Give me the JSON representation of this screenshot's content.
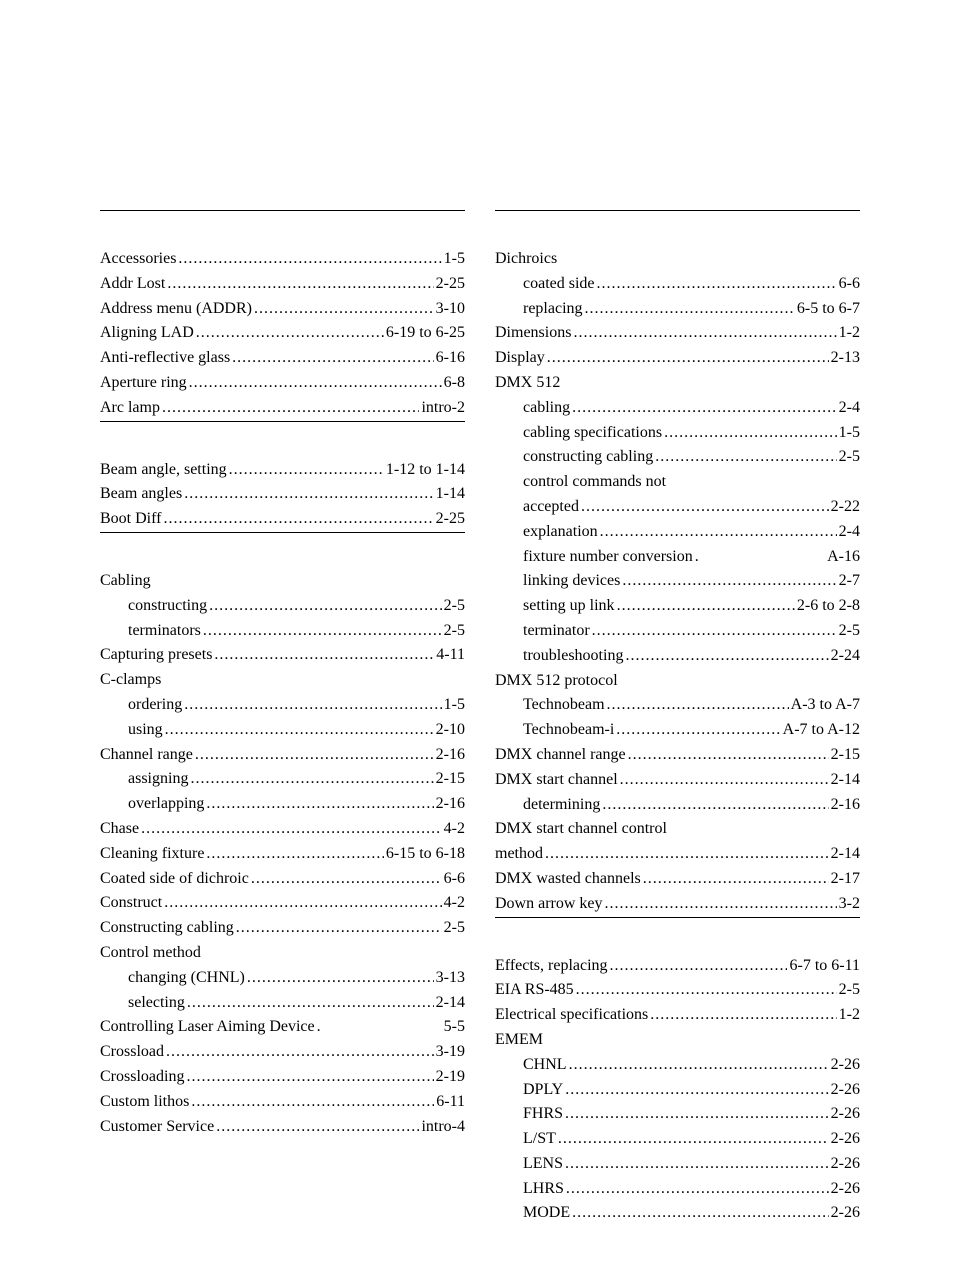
{
  "text_color": "#000000",
  "background_color": "#ffffff",
  "font_size_pt": 12,
  "line_height": 1.55,
  "left_column": [
    {
      "type": "hr"
    },
    {
      "type": "gap"
    },
    {
      "term": "Accessories",
      "page": "1-5"
    },
    {
      "term": "Addr Lost",
      "page": "2-25"
    },
    {
      "term": "Address menu (ADDR)",
      "page": "3-10"
    },
    {
      "term": "Aligning LAD",
      "page": "6-19 to 6-25"
    },
    {
      "term": "Anti-reflective glass",
      "page": "6-16"
    },
    {
      "term": "Aperture ring",
      "page": "6-8"
    },
    {
      "term": "Arc lamp",
      "page": "intro-2"
    },
    {
      "type": "hr"
    },
    {
      "type": "gap"
    },
    {
      "term": "Beam angle, setting",
      "page": "1-12 to 1-14"
    },
    {
      "term": "Beam angles",
      "page": "1-14"
    },
    {
      "term": "Boot Diff",
      "page": "2-25"
    },
    {
      "type": "hr"
    },
    {
      "type": "gap"
    },
    {
      "type": "header",
      "term": "Cabling"
    },
    {
      "term": "constructing",
      "page": "2-5",
      "indent": true
    },
    {
      "term": "terminators",
      "page": "2-5",
      "indent": true
    },
    {
      "term": "Capturing presets",
      "page": "4-11"
    },
    {
      "type": "header",
      "term": "C-clamps"
    },
    {
      "term": "ordering",
      "page": "1-5",
      "indent": true
    },
    {
      "term": "using",
      "page": "2-10",
      "indent": true
    },
    {
      "term": "Channel range",
      "page": "2-16"
    },
    {
      "term": "assigning",
      "page": "2-15",
      "indent": true
    },
    {
      "term": "overlapping",
      "page": "2-16",
      "indent": true
    },
    {
      "term": "Chase",
      "page": "4-2"
    },
    {
      "term": "Cleaning fixture",
      "page": "6-15 to 6-18"
    },
    {
      "term": "Coated side of dichroic",
      "page": "6-6"
    },
    {
      "term": "Construct",
      "page": "4-2"
    },
    {
      "term": "Constructing cabling",
      "page": "2-5"
    },
    {
      "type": "header",
      "term": "Control method"
    },
    {
      "term": "changing (CHNL)",
      "page": "3-13",
      "indent": true
    },
    {
      "term": "selecting",
      "page": "2-14",
      "indent": true
    },
    {
      "term": "Controlling Laser Aiming Device",
      "page": "5-5",
      "tight": true
    },
    {
      "term": "Crossload",
      "page": "3-19"
    },
    {
      "term": "Crossloading",
      "page": "2-19"
    },
    {
      "term": "Custom lithos",
      "page": "6-11"
    },
    {
      "term": "Customer Service",
      "page": "intro-4"
    }
  ],
  "right_column": [
    {
      "type": "hr"
    },
    {
      "type": "gap"
    },
    {
      "type": "header",
      "term": "Dichroics"
    },
    {
      "term": "coated side",
      "page": "6-6",
      "indent": true
    },
    {
      "term": "replacing",
      "page": " 6-5 to 6-7",
      "indent": true
    },
    {
      "term": "Dimensions",
      "page": " 1-2"
    },
    {
      "term": "Display",
      "page": " 2-13"
    },
    {
      "type": "header",
      "term": "DMX 512"
    },
    {
      "term": "cabling",
      "page": "2-4",
      "indent": true
    },
    {
      "term": "cabling specifications",
      "page": "1-5",
      "indent": true
    },
    {
      "term": "constructing cabling",
      "page": "2-5",
      "indent": true
    },
    {
      "type": "header",
      "term": "control commands not",
      "indent": true
    },
    {
      "term": "accepted",
      "page": " 2-22",
      "indent": true
    },
    {
      "term": "explanation",
      "page": "2-4",
      "indent": true
    },
    {
      "term": "fixture number conversion",
      "page": " A-16",
      "indent": true,
      "tight": true
    },
    {
      "term": "linking devices",
      "page": "2-7",
      "indent": true
    },
    {
      "term": "setting up link",
      "page": " 2-6 to 2-8",
      "indent": true
    },
    {
      "term": "terminator",
      "page": "2-5",
      "indent": true
    },
    {
      "term": "troubleshooting",
      "page": " 2-24",
      "indent": true
    },
    {
      "type": "header",
      "term": "DMX 512 protocol"
    },
    {
      "term": "Technobeam",
      "page": "A-3 to A-7",
      "indent": true
    },
    {
      "term": "Technobeam-i",
      "page": "A-7 to A-12",
      "indent": true
    },
    {
      "term": "DMX channel range",
      "page": " 2-15"
    },
    {
      "term": "DMX start channel",
      "page": " 2-14"
    },
    {
      "term": "determining",
      "page": " 2-16",
      "indent": true
    },
    {
      "type": "header",
      "term": "DMX start channel control"
    },
    {
      "term": "method",
      "page": " 2-14"
    },
    {
      "term": "DMX wasted channels",
      "page": " 2-17"
    },
    {
      "term": "Down arrow key",
      "page": " 3-2"
    },
    {
      "type": "hr"
    },
    {
      "type": "gap"
    },
    {
      "term": "Effects, replacing",
      "page": " 6-7 to 6-11"
    },
    {
      "term": "EIA RS-485",
      "page": " 2-5"
    },
    {
      "term": "Electrical specifications",
      "page": " 1-2"
    },
    {
      "type": "header",
      "term": "EMEM"
    },
    {
      "term": "CHNL",
      "page": " 2-26",
      "indent": true
    },
    {
      "term": "DPLY",
      "page": " 2-26",
      "indent": true
    },
    {
      "term": "FHRS",
      "page": " 2-26",
      "indent": true
    },
    {
      "term": "L/ST",
      "page": " 2-26",
      "indent": true
    },
    {
      "term": "LENS",
      "page": " 2-26",
      "indent": true
    },
    {
      "term": "LHRS",
      "page": " 2-26",
      "indent": true
    },
    {
      "term": "MODE",
      "page": " 2-26",
      "indent": true
    }
  ]
}
